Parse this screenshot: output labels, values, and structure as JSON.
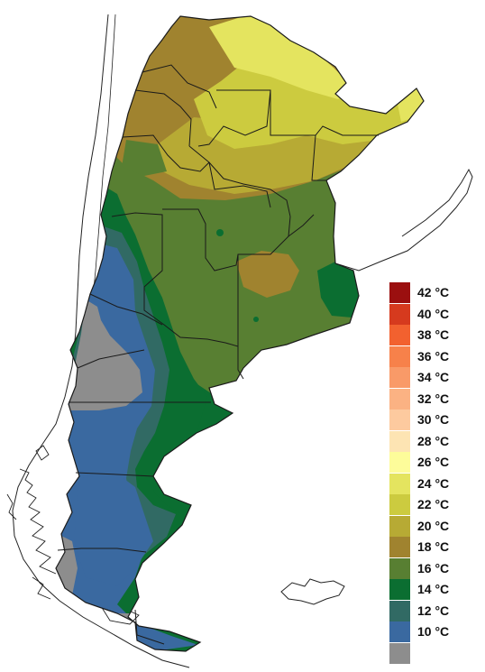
{
  "map": {
    "legend": [
      {
        "label": "42 °C",
        "color": "#9b0f0f"
      },
      {
        "label": "40 °C",
        "color": "#d63a1e"
      },
      {
        "label": "38 °C",
        "color": "#f2612f"
      },
      {
        "label": "36 °C",
        "color": "#f7814a"
      },
      {
        "label": "34 °C",
        "color": "#f99a68"
      },
      {
        "label": "32 °C",
        "color": "#fbb283"
      },
      {
        "label": "30 °C",
        "color": "#fdca9f"
      },
      {
        "label": "28 °C",
        "color": "#fde4b3"
      },
      {
        "label": "26 °C",
        "color": "#fdfc9a"
      },
      {
        "label": "24 °C",
        "color": "#e4e45f"
      },
      {
        "label": "22 °C",
        "color": "#cccb3f"
      },
      {
        "label": "20 °C",
        "color": "#b7aa34"
      },
      {
        "label": "18 °C",
        "color": "#a0832f"
      },
      {
        "label": "16 °C",
        "color": "#587f32"
      },
      {
        "label": "14 °C",
        "color": "#0b6e31"
      },
      {
        "label": "12 °C",
        "color": "#316a64"
      },
      {
        "label": "10 °C",
        "color": "#3a69a0"
      },
      {
        "label": "",
        "color": "#8d8d8d"
      }
    ]
  }
}
